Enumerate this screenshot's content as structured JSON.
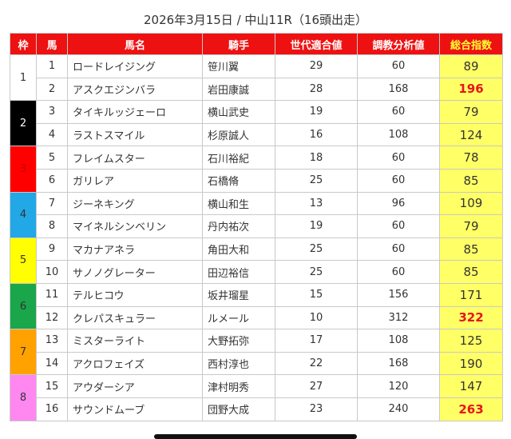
{
  "title": "2026年3月15日 / 中山11R（16頭出走）",
  "headers": [
    "枠",
    "馬",
    "馬名",
    "騎手",
    "世代適合値",
    "調教分析値",
    "総合指数"
  ],
  "frames": [
    {
      "label": "1",
      "color": "#ffffff",
      "text_color": "#333333"
    },
    {
      "label": "2",
      "color": "#000000",
      "text_color": "#ffffff"
    },
    {
      "label": "3",
      "color": "#ff0000",
      "text_color": "#cc0000"
    },
    {
      "label": "4",
      "color": "#22a8e6",
      "text_color": "#333333"
    },
    {
      "label": "5",
      "color": "#ffff00",
      "text_color": "#333333"
    },
    {
      "label": "6",
      "color": "#1aa64a",
      "text_color": "#333333"
    },
    {
      "label": "7",
      "color": "#ffa200",
      "text_color": "#333333"
    },
    {
      "label": "8",
      "color": "#ff88f0",
      "text_color": "#333333"
    }
  ],
  "rows": [
    {
      "num": "1",
      "name": "ロードレイジング",
      "jockey": "笹川翼",
      "gen": "29",
      "train": "60",
      "score": "89",
      "hi": false
    },
    {
      "num": "2",
      "name": "アスクエジンバラ",
      "jockey": "岩田康誠",
      "gen": "28",
      "train": "168",
      "score": "196",
      "hi": true
    },
    {
      "num": "3",
      "name": "タイキルッジェーロ",
      "jockey": "横山武史",
      "gen": "19",
      "train": "60",
      "score": "79",
      "hi": false
    },
    {
      "num": "4",
      "name": "ラストスマイル",
      "jockey": "杉原誠人",
      "gen": "16",
      "train": "108",
      "score": "124",
      "hi": false
    },
    {
      "num": "5",
      "name": "フレイムスター",
      "jockey": "石川裕紀",
      "gen": "18",
      "train": "60",
      "score": "78",
      "hi": false
    },
    {
      "num": "6",
      "name": "ガリレア",
      "jockey": "石橋脩",
      "gen": "25",
      "train": "60",
      "score": "85",
      "hi": false
    },
    {
      "num": "7",
      "name": "ジーネキング",
      "jockey": "横山和生",
      "gen": "13",
      "train": "96",
      "score": "109",
      "hi": false
    },
    {
      "num": "8",
      "name": "マイネルシンベリン",
      "jockey": "丹内祐次",
      "gen": "19",
      "train": "60",
      "score": "79",
      "hi": false
    },
    {
      "num": "9",
      "name": "マカナアネラ",
      "jockey": "角田大和",
      "gen": "25",
      "train": "60",
      "score": "85",
      "hi": false
    },
    {
      "num": "10",
      "name": "サノノグレーター",
      "jockey": "田辺裕信",
      "gen": "25",
      "train": "60",
      "score": "85",
      "hi": false
    },
    {
      "num": "11",
      "name": "テルヒコウ",
      "jockey": "坂井瑠星",
      "gen": "15",
      "train": "156",
      "score": "171",
      "hi": false
    },
    {
      "num": "12",
      "name": "クレパスキュラー",
      "jockey": "ルメール",
      "gen": "10",
      "train": "312",
      "score": "322",
      "hi": true
    },
    {
      "num": "13",
      "name": "ミスターライト",
      "jockey": "大野拓弥",
      "gen": "17",
      "train": "108",
      "score": "125",
      "hi": false
    },
    {
      "num": "14",
      "name": "アクロフェイズ",
      "jockey": "西村淳也",
      "gen": "22",
      "train": "168",
      "score": "190",
      "hi": false
    },
    {
      "num": "15",
      "name": "アウダーシア",
      "jockey": "津村明秀",
      "gen": "27",
      "train": "120",
      "score": "147",
      "hi": false
    },
    {
      "num": "16",
      "name": "サウンドムーブ",
      "jockey": "団野大成",
      "gen": "23",
      "train": "240",
      "score": "263",
      "hi": true
    }
  ]
}
